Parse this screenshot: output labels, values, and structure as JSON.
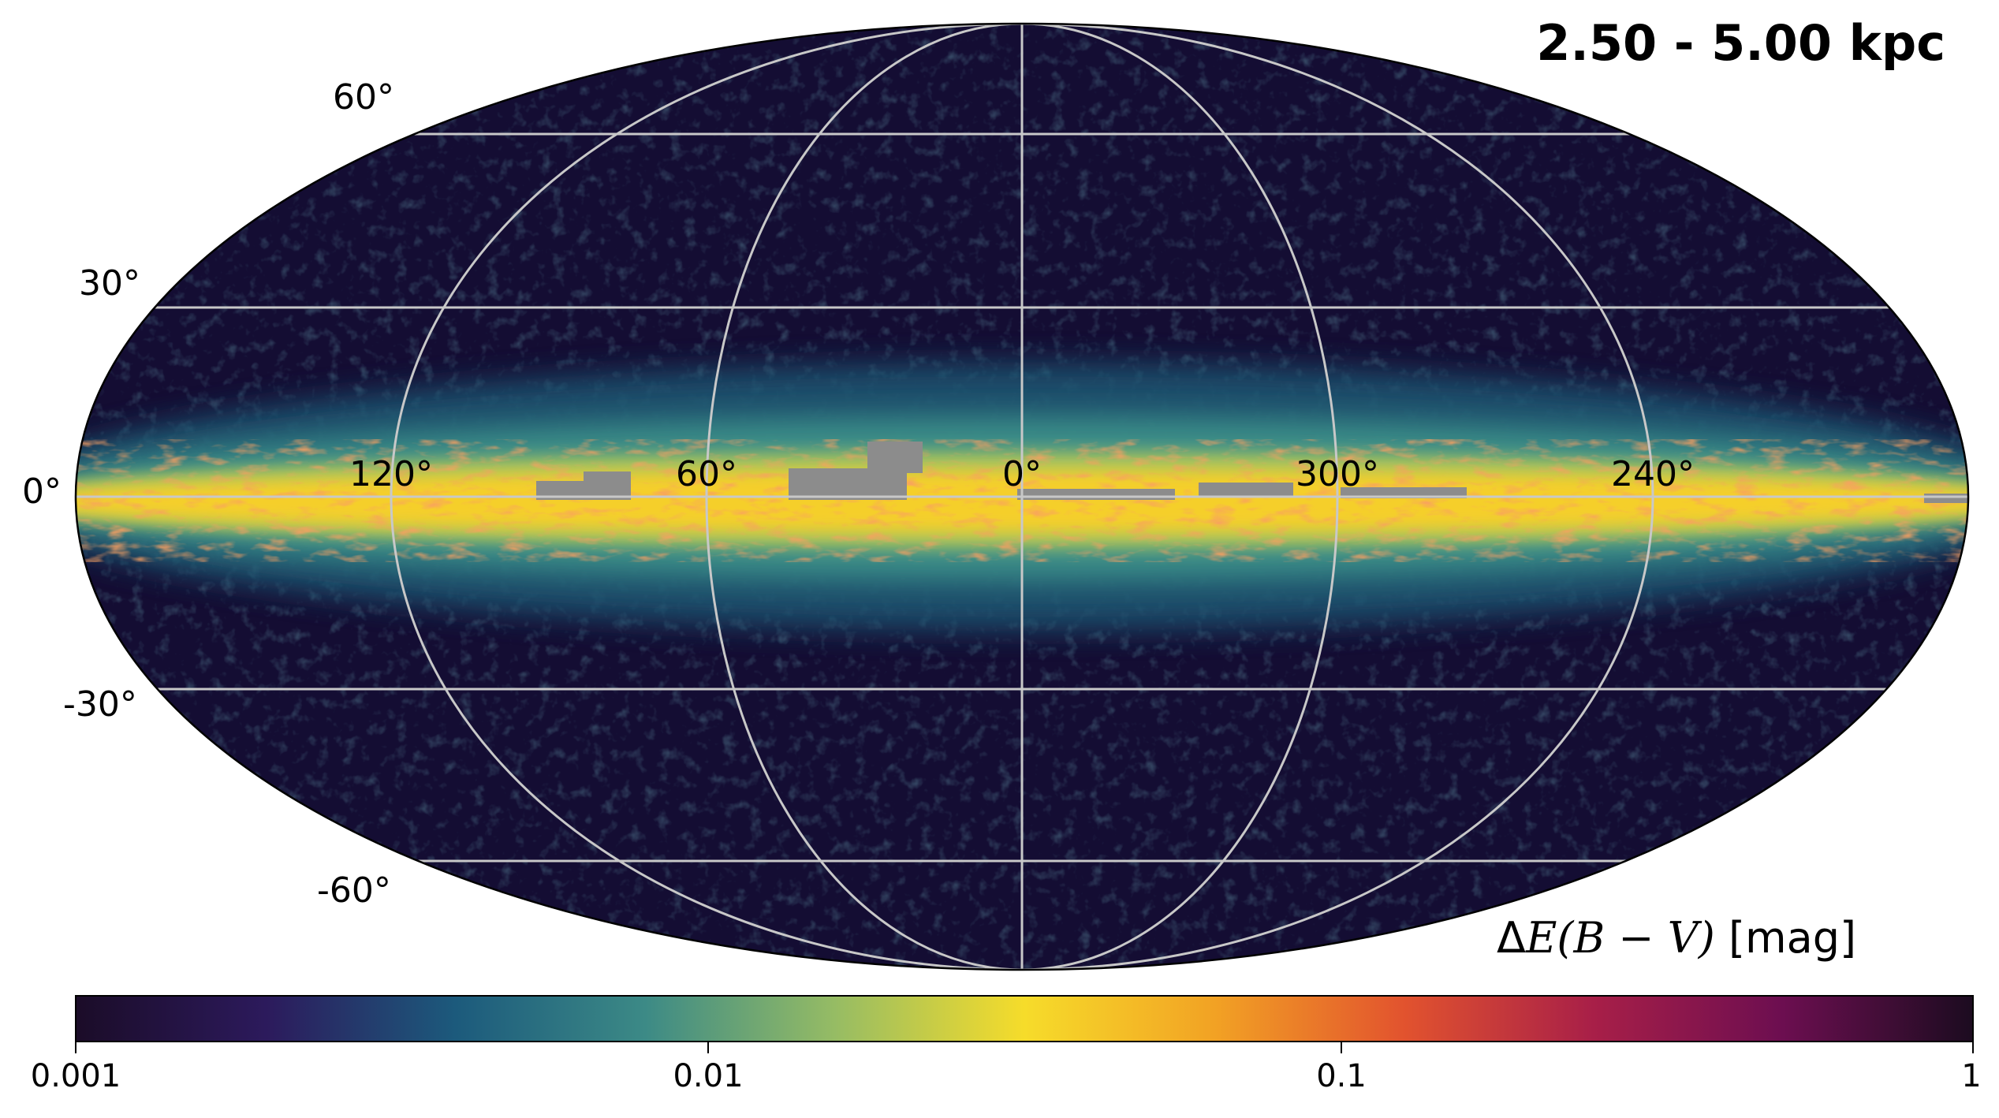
{
  "map": {
    "title": "2.50 - 5.00 kpc",
    "projection": "mollweide",
    "coordinate_system": "galactic",
    "latitude_labels": [
      "60°",
      "30°",
      "0°",
      "-30°",
      "-60°"
    ],
    "longitude_labels": [
      "120°",
      "60°",
      "0°",
      "300°",
      "240°"
    ],
    "colormap": "spectral-like (dark purple → teal → yellow → red → dark purple)",
    "colors": {
      "background": "#140d33",
      "grid": "#c8c8c8",
      "masked": "#8c8c8c"
    },
    "colorbar": {
      "label_prefix": "Δ",
      "label_math": "E(B − V)",
      "label_unit": "[mag]",
      "scale": "log",
      "range": [
        0.001,
        1
      ],
      "ticks": [
        "0.001",
        "0.01",
        "0.1",
        "1"
      ],
      "stops": [
        "#1b0c28",
        "#2c1a5c",
        "#1c5a7c",
        "#3c8a86",
        "#96bc64",
        "#f6dc2a",
        "#f2a224",
        "#e2532e",
        "#a81f48",
        "#6c0e50",
        "#1c0c20"
      ]
    }
  }
}
